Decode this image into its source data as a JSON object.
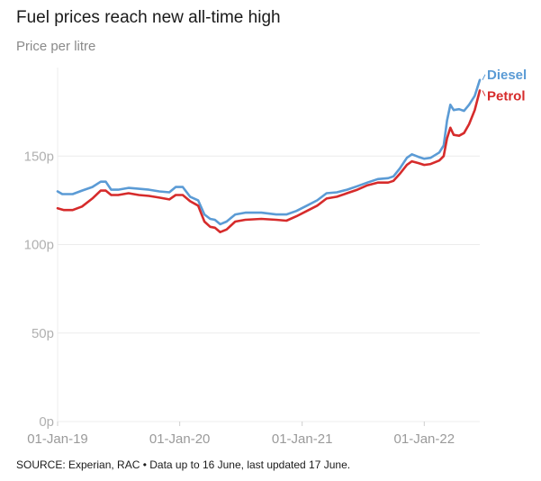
{
  "title": "Fuel prices reach new all-time high",
  "subtitle": "Price per litre",
  "source": "SOURCE: Experian, RAC • Data up to 16 June, last updated 17 June.",
  "chart_data": {
    "type": "line",
    "ylim": [
      0,
      200
    ],
    "yticks": [
      {
        "value": 0,
        "label": "0p"
      },
      {
        "value": 50,
        "label": "50p"
      },
      {
        "value": 100,
        "label": "100p"
      },
      {
        "value": 150,
        "label": "150p"
      }
    ],
    "xlim": [
      "2019-01-01",
      "2022-06-16"
    ],
    "xticks": [
      {
        "date": "2019-01-01",
        "label": "01-Jan-19"
      },
      {
        "date": "2020-01-01",
        "label": "01-Jan-20"
      },
      {
        "date": "2021-01-01",
        "label": "01-Jan-21"
      },
      {
        "date": "2022-01-01",
        "label": "01-Jan-22"
      }
    ],
    "grid": true,
    "legend": "end-of-line labels",
    "series": [
      {
        "name": "Diesel",
        "color": "#5b9bd5",
        "points": [
          [
            "2019-01-01",
            130
          ],
          [
            "2019-01-15",
            128.5
          ],
          [
            "2019-02-15",
            128.5
          ],
          [
            "2019-03-15",
            130.5
          ],
          [
            "2019-04-15",
            132.5
          ],
          [
            "2019-05-10",
            135.5
          ],
          [
            "2019-05-25",
            135.5
          ],
          [
            "2019-06-10",
            131
          ],
          [
            "2019-07-01",
            131
          ],
          [
            "2019-08-01",
            132
          ],
          [
            "2019-09-01",
            131.5
          ],
          [
            "2019-10-01",
            131
          ],
          [
            "2019-11-01",
            130
          ],
          [
            "2019-12-01",
            129.5
          ],
          [
            "2019-12-20",
            132.5
          ],
          [
            "2020-01-10",
            132.5
          ],
          [
            "2020-02-01",
            127
          ],
          [
            "2020-02-25",
            125
          ],
          [
            "2020-03-15",
            117
          ],
          [
            "2020-04-01",
            114.5
          ],
          [
            "2020-04-15",
            114
          ],
          [
            "2020-05-01",
            111.5
          ],
          [
            "2020-05-20",
            113
          ],
          [
            "2020-06-15",
            117
          ],
          [
            "2020-07-15",
            118
          ],
          [
            "2020-09-01",
            118
          ],
          [
            "2020-10-15",
            117
          ],
          [
            "2020-11-15",
            117
          ],
          [
            "2020-12-15",
            119
          ],
          [
            "2021-01-15",
            122
          ],
          [
            "2021-02-15",
            125
          ],
          [
            "2021-03-15",
            129
          ],
          [
            "2021-04-15",
            129.5
          ],
          [
            "2021-05-15",
            131
          ],
          [
            "2021-06-15",
            133
          ],
          [
            "2021-07-15",
            135
          ],
          [
            "2021-08-15",
            137
          ],
          [
            "2021-09-15",
            137.5
          ],
          [
            "2021-10-01",
            138.5
          ],
          [
            "2021-10-20",
            143
          ],
          [
            "2021-11-10",
            149
          ],
          [
            "2021-11-25",
            151
          ],
          [
            "2021-12-15",
            149.5
          ],
          [
            "2022-01-01",
            148.5
          ],
          [
            "2022-01-20",
            149
          ],
          [
            "2022-02-15",
            152
          ],
          [
            "2022-02-28",
            156
          ],
          [
            "2022-03-10",
            170
          ],
          [
            "2022-03-20",
            179
          ],
          [
            "2022-03-30",
            176
          ],
          [
            "2022-04-15",
            176.5
          ],
          [
            "2022-04-30",
            175.5
          ],
          [
            "2022-05-15",
            179
          ],
          [
            "2022-06-01",
            184
          ],
          [
            "2022-06-16",
            193
          ]
        ]
      },
      {
        "name": "Petrol",
        "color": "#d62b2b",
        "points": [
          [
            "2019-01-01",
            120.5
          ],
          [
            "2019-01-20",
            119.5
          ],
          [
            "2019-02-15",
            119.5
          ],
          [
            "2019-03-15",
            121.5
          ],
          [
            "2019-04-15",
            126
          ],
          [
            "2019-05-10",
            130.5
          ],
          [
            "2019-05-25",
            130.5
          ],
          [
            "2019-06-10",
            128
          ],
          [
            "2019-07-01",
            128
          ],
          [
            "2019-08-01",
            129
          ],
          [
            "2019-09-01",
            128
          ],
          [
            "2019-10-01",
            127.5
          ],
          [
            "2019-11-01",
            126.5
          ],
          [
            "2019-12-01",
            125.5
          ],
          [
            "2019-12-20",
            128
          ],
          [
            "2020-01-10",
            128
          ],
          [
            "2020-02-01",
            124.5
          ],
          [
            "2020-02-25",
            122
          ],
          [
            "2020-03-15",
            113
          ],
          [
            "2020-04-01",
            110
          ],
          [
            "2020-04-15",
            109.5
          ],
          [
            "2020-05-01",
            107
          ],
          [
            "2020-05-20",
            108.5
          ],
          [
            "2020-06-15",
            113
          ],
          [
            "2020-07-15",
            114
          ],
          [
            "2020-09-01",
            114.5
          ],
          [
            "2020-10-15",
            114
          ],
          [
            "2020-11-15",
            113.5
          ],
          [
            "2020-12-15",
            116
          ],
          [
            "2021-01-15",
            119
          ],
          [
            "2021-02-15",
            122
          ],
          [
            "2021-03-15",
            126
          ],
          [
            "2021-04-15",
            127
          ],
          [
            "2021-05-15",
            129
          ],
          [
            "2021-06-15",
            131
          ],
          [
            "2021-07-15",
            133.5
          ],
          [
            "2021-08-15",
            135
          ],
          [
            "2021-09-15",
            135
          ],
          [
            "2021-10-01",
            136
          ],
          [
            "2021-10-20",
            140
          ],
          [
            "2021-11-10",
            145
          ],
          [
            "2021-11-25",
            147
          ],
          [
            "2021-12-15",
            146
          ],
          [
            "2022-01-01",
            145
          ],
          [
            "2022-01-20",
            145.5
          ],
          [
            "2022-02-15",
            147.5
          ],
          [
            "2022-02-28",
            150
          ],
          [
            "2022-03-10",
            160
          ],
          [
            "2022-03-20",
            166
          ],
          [
            "2022-03-30",
            162
          ],
          [
            "2022-04-15",
            161.5
          ],
          [
            "2022-04-30",
            163
          ],
          [
            "2022-05-15",
            168
          ],
          [
            "2022-06-01",
            176
          ],
          [
            "2022-06-16",
            187
          ]
        ]
      }
    ]
  }
}
